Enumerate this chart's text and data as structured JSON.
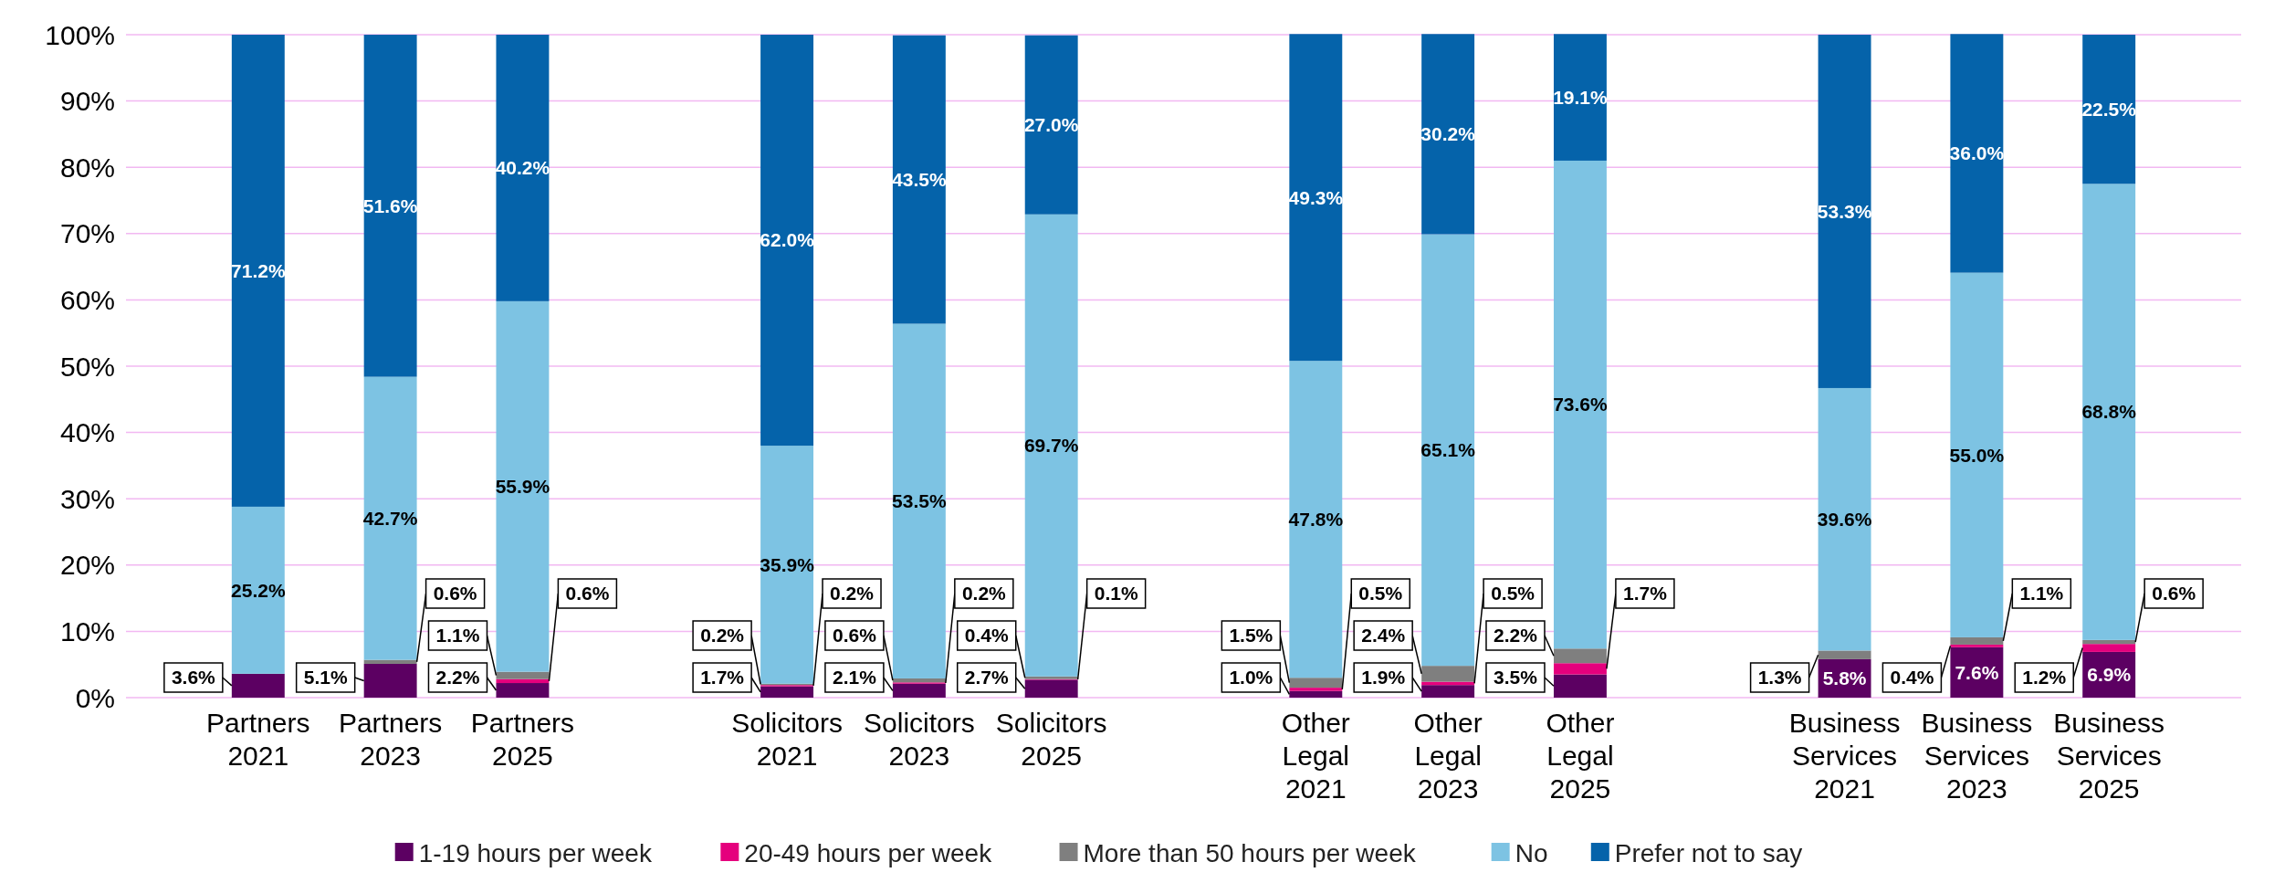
{
  "chart_data": {
    "type": "bar",
    "stacked": true,
    "grid": "y",
    "legend": "bottom",
    "categories": [
      "Partners 2021",
      "Partners 2023",
      "Partners 2025",
      null,
      "Solicitors 2021",
      "Solicitors 2023",
      "Solicitors 2025",
      null,
      "Other Legal 2021",
      "Other Legal 2023",
      "Other Legal 2025",
      null,
      "Business Services 2021",
      "Business Services 2023",
      "Business Services 2025"
    ],
    "ylim": [
      0,
      100
    ],
    "yticks": [
      {
        "value": 0,
        "label": "0%"
      },
      {
        "value": 10,
        "label": "10%"
      },
      {
        "value": 20,
        "label": "20%"
      },
      {
        "value": 30,
        "label": "30%"
      },
      {
        "value": 40,
        "label": "40%"
      },
      {
        "value": 50,
        "label": "50%"
      },
      {
        "value": 60,
        "label": "60%"
      },
      {
        "value": 70,
        "label": "70%"
      },
      {
        "value": 80,
        "label": "80%"
      },
      {
        "value": 90,
        "label": "90%"
      },
      {
        "value": 100,
        "label": "100%"
      }
    ],
    "series": [
      {
        "name": "1-19 hours per week",
        "color": "#5c0062",
        "values": [
          3.6,
          5.1,
          2.2,
          null,
          1.7,
          2.1,
          2.7,
          null,
          1.0,
          1.9,
          3.5,
          null,
          5.8,
          7.6,
          6.9
        ],
        "value_labels": [
          "3.6%",
          "5.1%",
          "2.2%",
          null,
          "1.7%",
          "2.1%",
          "2.7%",
          null,
          "1.0%",
          "1.9%",
          "3.5%",
          null,
          "5.8%",
          "7.6%",
          "6.9%"
        ]
      },
      {
        "name": "20-49 hours per week",
        "color": "#e5007d",
        "values": [
          null,
          null,
          0.6,
          null,
          0.2,
          0.2,
          0.1,
          null,
          0.5,
          0.5,
          1.7,
          null,
          null,
          0.4,
          1.2
        ],
        "value_labels": [
          null,
          null,
          "0.6%",
          null,
          "0.2%",
          "0.2%",
          "0.1%",
          null,
          "0.5%",
          "0.5%",
          "1.7%",
          null,
          null,
          "0.4%",
          "1.2%"
        ]
      },
      {
        "name": "More than 50 hours per week",
        "color": "#7f7f7f",
        "values": [
          null,
          0.6,
          1.1,
          null,
          0.2,
          0.6,
          0.4,
          null,
          1.5,
          2.4,
          2.2,
          null,
          1.3,
          1.1,
          0.6
        ],
        "value_labels": [
          null,
          "0.6%",
          "1.1%",
          null,
          "0.2%",
          "0.6%",
          "0.4%",
          null,
          "1.5%",
          "2.4%",
          "2.2%",
          null,
          "1.3%",
          "1.1%",
          "0.6%"
        ]
      },
      {
        "name": "No",
        "color": "#7dc3e3",
        "values": [
          25.2,
          42.7,
          55.9,
          null,
          35.9,
          53.5,
          69.7,
          null,
          47.8,
          65.1,
          73.6,
          null,
          39.6,
          55.0,
          68.8
        ],
        "value_labels": [
          "25.2%",
          "42.7%",
          "55.9%",
          null,
          "35.9%",
          "53.5%",
          "69.7%",
          null,
          "47.8%",
          "65.1%",
          "73.6%",
          null,
          "39.6%",
          "55.0%",
          "68.8%"
        ]
      },
      {
        "name": "Prefer not to say",
        "color": "#0563aa",
        "values": [
          71.2,
          51.6,
          40.2,
          null,
          62.0,
          43.5,
          27.0,
          null,
          49.3,
          30.2,
          19.1,
          null,
          53.3,
          36.0,
          22.5
        ],
        "value_labels": [
          "71.2%",
          "51.6%",
          "40.2%",
          null,
          "62.0%",
          "43.5%",
          "27.0%",
          null,
          "49.3%",
          "30.2%",
          "19.1%",
          null,
          "53.3%",
          "36.0%",
          "22.5%"
        ]
      }
    ]
  }
}
